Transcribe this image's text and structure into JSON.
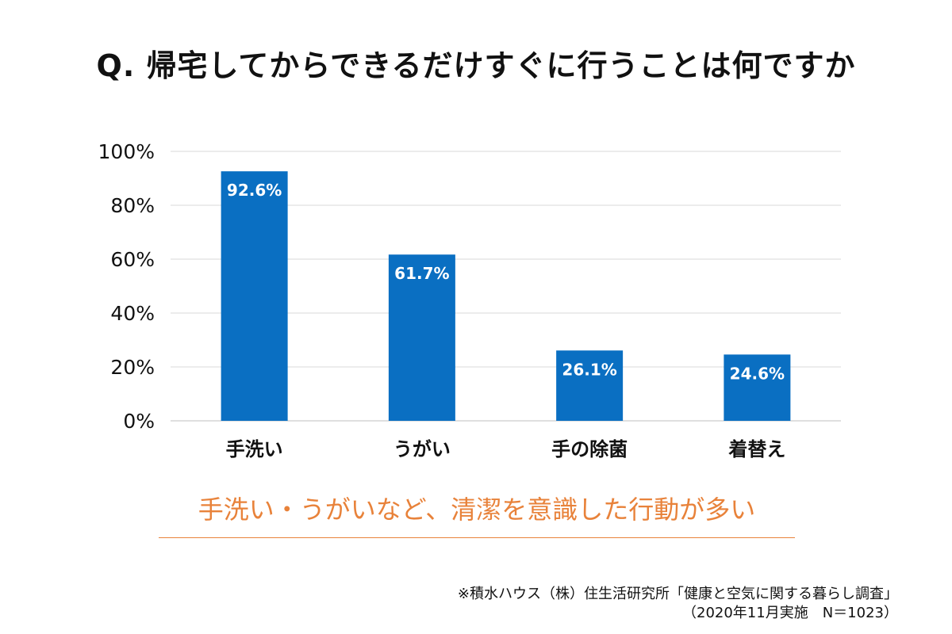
{
  "chart_data": {
    "type": "bar",
    "title": "Q. 帰宅してからできるだけすぐに行うことは何ですか",
    "categories": [
      "手洗い",
      "うがい",
      "手の除菌",
      "着替え"
    ],
    "values": [
      92.6,
      61.7,
      26.1,
      24.6
    ],
    "data_labels": [
      "92.6%",
      "61.7%",
      "26.1%",
      "24.6%"
    ],
    "yticks": [
      "0%",
      "20%",
      "40%",
      "60%",
      "80%",
      "100%"
    ],
    "ylim": [
      0,
      100
    ],
    "xlabel": "",
    "ylabel": "",
    "grid": true,
    "legend": "none",
    "bar_color": "#0a6fc2"
  },
  "conclusion": "手洗い・うがいなど、清潔を意識した行動が多い",
  "conclusion_color": "#e8823a",
  "source": {
    "line1": "※積水ハウス（株）住生活研究所「健康と空気に関する暮らし調査」",
    "line2": "（2020年11月実施　N＝1023）"
  }
}
